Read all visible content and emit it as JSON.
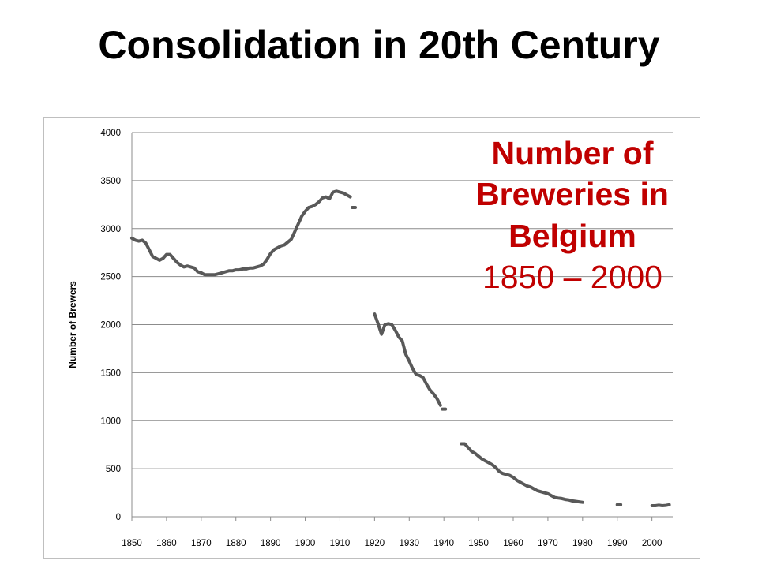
{
  "slide": {
    "title": "Consolidation in 20th Century"
  },
  "annotation": {
    "line1": "Number of",
    "line2": "Breweries in",
    "line3": "Belgium",
    "range": "1850 – 2000",
    "color": "#c00000"
  },
  "chart_data": {
    "type": "line",
    "title": "",
    "xlabel": "",
    "ylabel": "Number of Brewers",
    "xlim": [
      1850,
      2006
    ],
    "ylim": [
      0,
      4000
    ],
    "x_ticks": [
      "1850",
      "1860",
      "1870",
      "1880",
      "1890",
      "1900",
      "1910",
      "1920",
      "1930",
      "1940",
      "1950",
      "1960",
      "1970",
      "1980",
      "1990",
      "2000"
    ],
    "y_ticks": [
      "0",
      "500",
      "1000",
      "1500",
      "2000",
      "2500",
      "3000",
      "3500",
      "4000"
    ],
    "grid": "horizontal",
    "line_color": "#595959",
    "series": [
      {
        "segments": [
          {
            "x": [
              1850,
              1851,
              1852,
              1853,
              1854,
              1855,
              1856,
              1857,
              1858,
              1859,
              1860,
              1861,
              1862,
              1863,
              1864,
              1865,
              1866,
              1867,
              1868,
              1869,
              1870,
              1871,
              1872,
              1873,
              1874,
              1875,
              1876,
              1877,
              1878,
              1879,
              1880,
              1881,
              1882,
              1883,
              1884,
              1885,
              1886,
              1887,
              1888,
              1889,
              1890,
              1891,
              1892,
              1893,
              1894,
              1895,
              1896,
              1897,
              1898,
              1899,
              1900,
              1901,
              1902,
              1903,
              1904,
              1905,
              1906,
              1907,
              1908,
              1909,
              1910,
              1911,
              1912,
              1913
            ],
            "y": [
              2900,
              2880,
              2870,
              2880,
              2850,
              2780,
              2710,
              2690,
              2670,
              2690,
              2730,
              2730,
              2690,
              2650,
              2620,
              2600,
              2610,
              2600,
              2590,
              2550,
              2540,
              2520,
              2520,
              2520,
              2520,
              2530,
              2540,
              2550,
              2560,
              2560,
              2570,
              2570,
              2580,
              2580,
              2590,
              2590,
              2600,
              2610,
              2630,
              2680,
              2740,
              2780,
              2800,
              2820,
              2830,
              2860,
              2890,
              2970,
              3050,
              3130,
              3180,
              3220,
              3230,
              3250,
              3280,
              3320,
              3330,
              3310,
              3380,
              3390,
              3380,
              3370,
              3350,
              3330
            ]
          },
          {
            "x": [
              1914
            ],
            "y": [
              3220
            ]
          },
          {
            "x": [
              1920,
              1921,
              1922,
              1923,
              1924,
              1925,
              1926,
              1927,
              1928,
              1929,
              1930,
              1931,
              1932,
              1933,
              1934,
              1935,
              1936,
              1937,
              1938,
              1939
            ],
            "y": [
              2110,
              2010,
              1900,
              2000,
              2010,
              2000,
              1940,
              1870,
              1830,
              1690,
              1620,
              1540,
              1480,
              1470,
              1450,
              1380,
              1320,
              1280,
              1230,
              1160
            ]
          },
          {
            "x": [
              1940
            ],
            "y": [
              1120
            ]
          },
          {
            "x": [
              1945,
              1946,
              1947,
              1948,
              1949,
              1950,
              1951,
              1952,
              1953,
              1954,
              1955,
              1956,
              1957,
              1958,
              1959,
              1960,
              1961,
              1962,
              1963,
              1964,
              1965,
              1966,
              1967,
              1968,
              1969,
              1970,
              1971,
              1972,
              1973,
              1974,
              1975,
              1976,
              1977,
              1978,
              1979,
              1980
            ],
            "y": [
              760,
              760,
              720,
              680,
              660,
              630,
              600,
              580,
              560,
              540,
              510,
              470,
              450,
              440,
              430,
              410,
              380,
              360,
              340,
              320,
              310,
              290,
              270,
              260,
              250,
              240,
              220,
              200,
              195,
              190,
              180,
              175,
              165,
              160,
              155,
              150
            ]
          },
          {
            "x": [
              1990,
              1991
            ],
            "y": [
              125,
              125
            ]
          },
          {
            "x": [
              2000,
              2001,
              2002,
              2003,
              2004,
              2005
            ],
            "y": [
              115,
              115,
              120,
              115,
              118,
              125
            ]
          }
        ]
      }
    ]
  }
}
